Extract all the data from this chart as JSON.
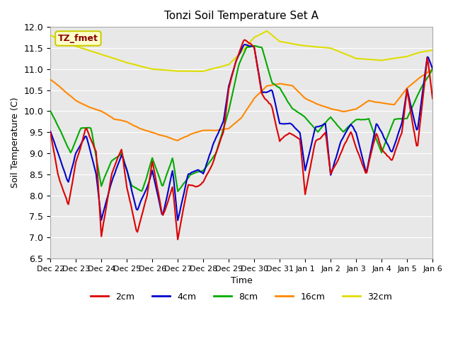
{
  "title": "Tonzi Soil Temperature Set A",
  "xlabel": "Time",
  "ylabel": "Soil Temperature (C)",
  "ylim": [
    6.5,
    12.0
  ],
  "annotation": "TZ_fmet",
  "legend": [
    "2cm",
    "4cm",
    "8cm",
    "16cm",
    "32cm"
  ],
  "colors": {
    "2cm": "#dd0000",
    "4cm": "#0000cc",
    "8cm": "#00aa00",
    "16cm": "#ff8800",
    "32cm": "#dddd00"
  },
  "xtick_labels": [
    "Dec 22",
    "Dec 23",
    "Dec 24",
    "Dec 25",
    "Dec 26",
    "Dec 27",
    "Dec 28",
    "Dec 29",
    "Dec 30",
    "Dec 31",
    "Jan 1",
    "Jan 2",
    "Jan 3",
    "Jan 4",
    "Jan 5",
    "Jan 6"
  ],
  "xtick_pos": [
    0,
    1,
    2,
    3,
    4,
    5,
    6,
    7,
    8,
    9,
    10,
    11,
    12,
    13,
    14,
    15
  ],
  "background_color": "#e8e8e8",
  "plot_bg_color": "#e8e8e8"
}
